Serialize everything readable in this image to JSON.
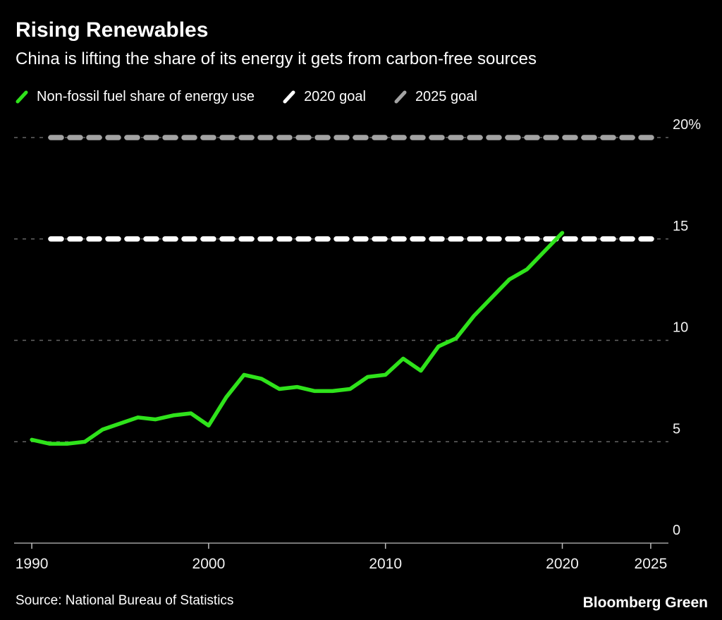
{
  "header": {
    "title": "Rising Renewables",
    "subtitle": "China is lifting the share of its energy it gets from carbon-free sources"
  },
  "legend": {
    "items": [
      {
        "label": "Non-fossil fuel share of energy use",
        "color": "#2fe31b"
      },
      {
        "label": "2020 goal",
        "color": "#ffffff"
      },
      {
        "label": "2025 goal",
        "color": "#a3a3a3"
      }
    ]
  },
  "footer": {
    "source": "Source: National Bureau of Statistics",
    "brand": "Bloomberg Green"
  },
  "chart_data": {
    "type": "line",
    "title": "Rising Renewables",
    "subtitle": "China is lifting the share of its energy it gets from carbon-free sources",
    "x": [
      1990,
      1991,
      1992,
      1993,
      1994,
      1995,
      1996,
      1997,
      1998,
      1999,
      2000,
      2001,
      2002,
      2003,
      2004,
      2005,
      2006,
      2007,
      2008,
      2009,
      2010,
      2011,
      2012,
      2013,
      2014,
      2015,
      2016,
      2017,
      2018,
      2019,
      2020
    ],
    "series": [
      {
        "name": "Non-fossil fuel share of energy use",
        "color": "#2fe31b",
        "values": [
          5.1,
          4.9,
          4.9,
          5.0,
          5.6,
          5.9,
          6.2,
          6.1,
          6.3,
          6.4,
          5.8,
          7.2,
          8.3,
          8.1,
          7.6,
          7.7,
          7.5,
          7.5,
          7.6,
          8.2,
          8.3,
          9.1,
          8.5,
          9.7,
          10.1,
          11.2,
          12.1,
          13.0,
          13.5,
          14.4,
          15.3
        ]
      }
    ],
    "goal_lines": [
      {
        "name": "2020 goal",
        "value": 15,
        "color": "#ffffff"
      },
      {
        "name": "2025 goal",
        "value": 20,
        "color": "#a3a3a3"
      }
    ],
    "minor_gridlines": [
      5,
      10
    ],
    "y_ticks": [
      {
        "value": 20,
        "label": "20%"
      },
      {
        "value": 15,
        "label": "15"
      },
      {
        "value": 10,
        "label": "10"
      },
      {
        "value": 5,
        "label": "5"
      },
      {
        "value": 0,
        "label": "0"
      }
    ],
    "x_ticks": [
      1990,
      2000,
      2010,
      2020,
      2025
    ],
    "xlim": [
      1989,
      2026
    ],
    "ylim": [
      0,
      20
    ],
    "xlabel": "",
    "ylabel": "",
    "grid": "dashed-horizontal",
    "legend_position": "top"
  }
}
